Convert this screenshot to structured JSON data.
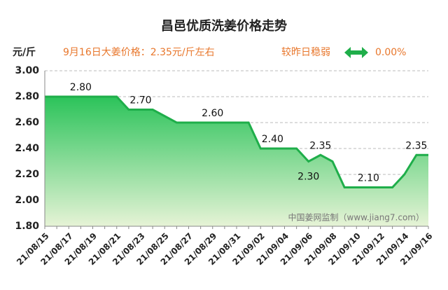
{
  "chart_data": {
    "type": "area",
    "title": "昌邑优质洗姜价格走势",
    "y_unit": "元/斤",
    "headline": "9月16日大姜价格：2.35元/斤左右",
    "change_label": "较昨日稳弱",
    "change_value": "0.00%",
    "watermark": "中国姜网监制（www.jiang7.com）",
    "categories": [
      "21/08/15",
      null,
      "21/08/17",
      null,
      "21/08/19",
      null,
      "21/08/21",
      null,
      "21/08/23",
      null,
      "21/08/25",
      null,
      "21/08/27",
      null,
      "21/08/29",
      null,
      "21/08/31",
      null,
      "21/09/02",
      null,
      "21/09/04",
      null,
      "21/09/06",
      null,
      "21/09/08",
      null,
      "21/09/10",
      null,
      "21/09/12",
      null,
      "21/09/14",
      null,
      "21/09/16"
    ],
    "values": [
      2.8,
      2.8,
      2.8,
      2.8,
      2.8,
      2.8,
      2.8,
      2.7,
      2.7,
      2.7,
      2.65,
      2.6,
      2.6,
      2.6,
      2.6,
      2.6,
      2.6,
      2.6,
      2.4,
      2.4,
      2.4,
      2.4,
      2.3,
      2.35,
      2.3,
      2.1,
      2.1,
      2.1,
      2.1,
      2.1,
      2.2,
      2.35,
      2.35
    ],
    "value_labels": [
      null,
      null,
      null,
      "2.80",
      null,
      null,
      null,
      null,
      "2.70",
      null,
      null,
      null,
      null,
      null,
      "2.60",
      null,
      null,
      null,
      null,
      "2.40",
      null,
      null,
      "2.30",
      "2.35",
      null,
      null,
      null,
      "2.10",
      null,
      null,
      null,
      "2.35",
      null
    ],
    "color": "#1fae4a",
    "ylim": [
      1.8,
      3.0
    ],
    "yticks": [
      {
        "value": 1.8,
        "label": "1.80"
      },
      {
        "value": 2.0,
        "label": "2.00"
      },
      {
        "value": 2.2,
        "label": "2.20"
      },
      {
        "value": 2.4,
        "label": "2.40"
      },
      {
        "value": 2.6,
        "label": "2.60"
      },
      {
        "value": 2.8,
        "label": "2.80"
      },
      {
        "value": 3.0,
        "label": "3.00"
      }
    ],
    "grid": true
  }
}
